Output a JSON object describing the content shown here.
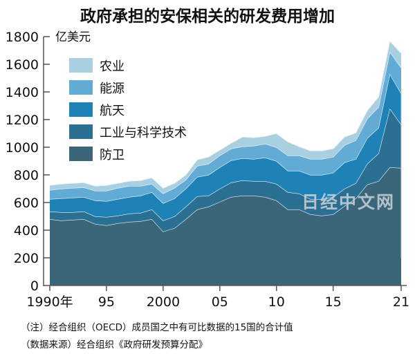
{
  "chart_data": {
    "type": "area",
    "stacked": true,
    "title": "政府承担的安保相关的研发费用增加",
    "ylabel": "亿美元",
    "xlabel": "",
    "ylim": [
      0,
      1800
    ],
    "yticks": [
      0,
      200,
      400,
      600,
      800,
      1000,
      1200,
      1400,
      1600,
      1800
    ],
    "xticks": [
      {
        "value": 1990,
        "label": "1990年"
      },
      {
        "value": 1995,
        "label": "95"
      },
      {
        "value": 2000,
        "label": "2000"
      },
      {
        "value": 2005,
        "label": "05"
      },
      {
        "value": 2010,
        "label": "10"
      },
      {
        "value": 2015,
        "label": "15"
      },
      {
        "value": 2021,
        "label": "21"
      }
    ],
    "xlim": [
      1990,
      2021
    ],
    "legend_placement": "top-left",
    "x": [
      1990,
      1991,
      1992,
      1993,
      1994,
      1995,
      1996,
      1997,
      1998,
      1999,
      2000,
      2001,
      2002,
      2003,
      2004,
      2005,
      2006,
      2007,
      2008,
      2009,
      2010,
      2011,
      2012,
      2013,
      2014,
      2015,
      2016,
      2017,
      2018,
      2019,
      2020,
      2021
    ],
    "series": [
      {
        "name": "防卫",
        "color": "#3b6679",
        "values": [
          480,
          470,
          475,
          480,
          445,
          435,
          450,
          460,
          465,
          480,
          390,
          415,
          480,
          550,
          570,
          605,
          640,
          650,
          650,
          640,
          615,
          550,
          550,
          515,
          505,
          515,
          575,
          630,
          730,
          755,
          855,
          850
        ]
      },
      {
        "name": "工业与科学技术",
        "color": "#2b6f92",
        "values": [
          55,
          60,
          55,
          55,
          55,
          60,
          55,
          60,
          60,
          70,
          80,
          85,
          90,
          95,
          80,
          95,
          105,
          110,
          105,
          115,
          120,
          125,
          115,
          110,
          120,
          125,
          125,
          110,
          150,
          200,
          425,
          315
        ]
      },
      {
        "name": "航天",
        "color": "#1f82b6",
        "values": [
          90,
          100,
          105,
          105,
          115,
          115,
          120,
          120,
          125,
          125,
          125,
          130,
          130,
          140,
          150,
          155,
          160,
          160,
          160,
          170,
          165,
          155,
          165,
          175,
          175,
          175,
          190,
          175,
          185,
          185,
          250,
          225
        ]
      },
      {
        "name": "能源",
        "color": "#62abd5",
        "values": [
          65,
          70,
          70,
          70,
          70,
          75,
          80,
          80,
          70,
          60,
          70,
          75,
          65,
          80,
          80,
          85,
          85,
          85,
          95,
          100,
          100,
          110,
          110,
          115,
          115,
          115,
          125,
          135,
          140,
          150,
          160,
          185
        ]
      },
      {
        "name": "农业",
        "color": "#aacfe0",
        "values": [
          35,
          35,
          35,
          35,
          35,
          40,
          35,
          35,
          40,
          45,
          40,
          35,
          35,
          45,
          50,
          40,
          40,
          70,
          60,
          55,
          100,
          100,
          65,
          60,
          60,
          60,
          60,
          55,
          60,
          75,
          80,
          105
        ]
      }
    ]
  },
  "watermark": "日经中文网",
  "notes": {
    "note": "（注）经合组织（OECD）成员国之中有可比数据的15国的合计值",
    "source": "（数据来源）经合组织《政府研发预算分配》"
  }
}
